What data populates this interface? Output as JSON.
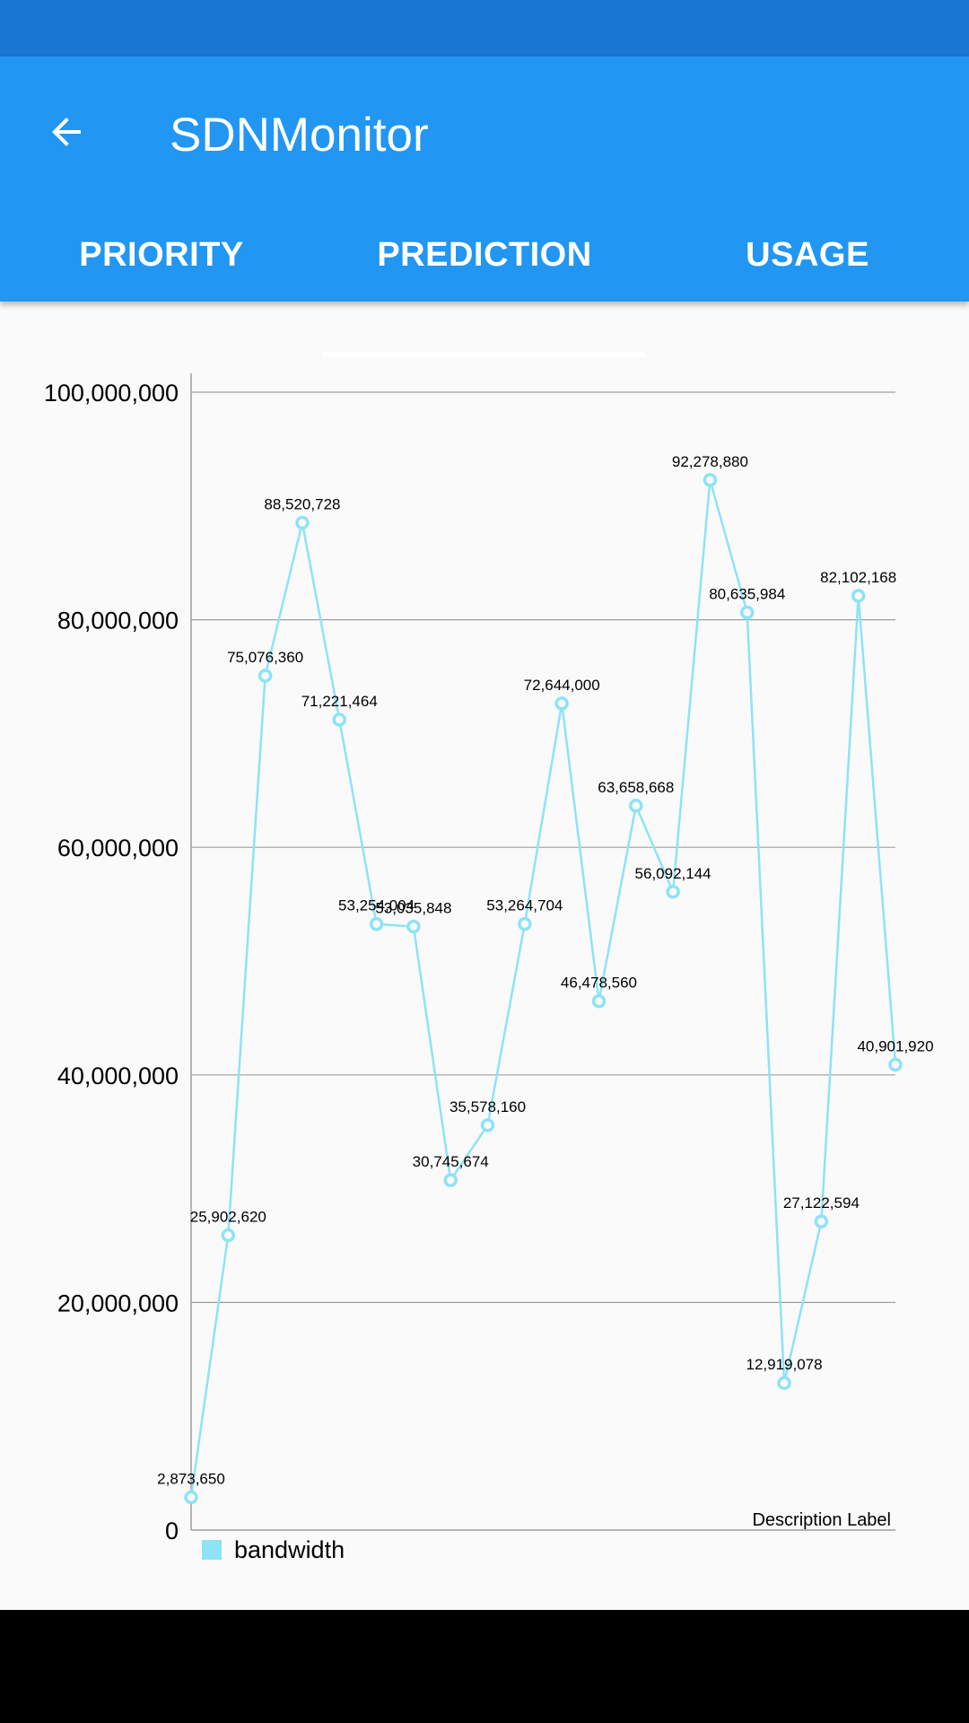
{
  "app": {
    "title": "SDNMonitor",
    "back_icon": "arrow-back-icon"
  },
  "colors": {
    "status_bar": "#1976D2",
    "app_bar": "#2196F3",
    "line": "#8EE3F5",
    "grid": "#9E9E9E",
    "background": "#FAFAFA"
  },
  "tabs": [
    {
      "label": "PRIORITY",
      "selected": false
    },
    {
      "label": "PREDICTION",
      "selected": true
    },
    {
      "label": "USAGE",
      "selected": false
    }
  ],
  "chart_data": {
    "type": "line",
    "title": "",
    "description": "Description Label",
    "ylim": [
      0,
      100000000
    ],
    "yticks": [
      0,
      20000000,
      40000000,
      60000000,
      80000000,
      100000000
    ],
    "ytick_labels": [
      "0",
      "20,000,000",
      "40,000,000",
      "60,000,000",
      "80,000,000",
      "100,000,000"
    ],
    "grid": true,
    "legend_position": "bottom-left",
    "x": [
      0,
      1,
      2,
      3,
      4,
      5,
      6,
      7,
      8,
      9,
      10,
      11,
      12,
      13,
      14,
      15,
      16,
      17,
      18,
      19
    ],
    "series": [
      {
        "name": "bandwidth",
        "values": [
          2873650,
          25902620,
          75076360,
          88520728,
          71221464,
          53254004,
          53035848,
          30745674,
          35578160,
          53264704,
          72644000,
          46478560,
          63658668,
          56092144,
          92278880,
          80635984,
          12919078,
          27122594,
          82102168,
          40901920
        ],
        "labels": [
          "2,873,650",
          "25,902,620",
          "75,076,360",
          "88,520,728",
          "71,221,464",
          "53,254,004",
          "53,035,848",
          "30,745,674",
          "35,578,160",
          "53,264,704",
          "72,644,000",
          "46,478,560",
          "63,658,668",
          "56,092,144",
          "92,278,880",
          "80,635,984",
          "12,919,078",
          "27,122,594",
          "82,102,168",
          "40,901,920"
        ]
      }
    ]
  }
}
